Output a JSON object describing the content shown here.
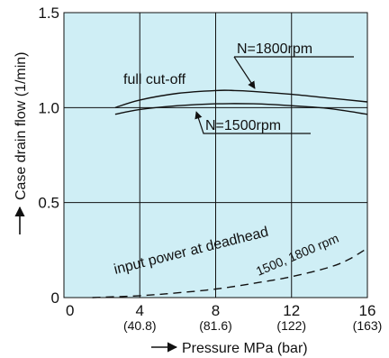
{
  "chart_data": {
    "type": "line",
    "title": "",
    "xlabel": "Pressure MPa (bar)",
    "ylabel": "Case drain flow (1/min)",
    "xlim": [
      0,
      16
    ],
    "ylim": [
      0,
      1.5
    ],
    "grid": true,
    "background_color": "#cfeef5",
    "x_ticks": [
      {
        "value": 0,
        "label": "0",
        "sublabel": ""
      },
      {
        "value": 4,
        "label": "4",
        "sublabel": "(40.8)"
      },
      {
        "value": 8,
        "label": "8",
        "sublabel": "(81.6)"
      },
      {
        "value": 12,
        "label": "12",
        "sublabel": "(122)"
      },
      {
        "value": 16,
        "label": "16",
        "sublabel": "(163)"
      }
    ],
    "y_ticks": [
      {
        "value": 0,
        "label": "0"
      },
      {
        "value": 0.5,
        "label": "0.5"
      },
      {
        "value": 1.0,
        "label": "1.0"
      },
      {
        "value": 1.5,
        "label": "1.5"
      }
    ],
    "series": [
      {
        "name": "N=1800rpm",
        "style": "solid",
        "x": [
          2.7,
          4,
          6,
          8,
          9,
          10,
          12,
          14,
          16
        ],
        "y": [
          1.0,
          1.04,
          1.075,
          1.09,
          1.09,
          1.085,
          1.07,
          1.05,
          1.03
        ]
      },
      {
        "name": "N=1500rpm",
        "style": "solid",
        "x": [
          2.7,
          4,
          6,
          8,
          10,
          12,
          14,
          16
        ],
        "y": [
          0.965,
          0.99,
          1.01,
          1.02,
          1.02,
          1.01,
          0.995,
          0.965
        ]
      },
      {
        "name": "input power at deadhead 1500, 1800 rpm",
        "style": "dashed",
        "x": [
          1.5,
          4,
          6,
          8,
          10,
          12,
          14,
          15,
          16
        ],
        "y": [
          0.0,
          0.01,
          0.025,
          0.045,
          0.075,
          0.11,
          0.16,
          0.2,
          0.26
        ]
      }
    ],
    "annotations": {
      "n1800": "N=1800rpm",
      "n1500": "N=1500rpm",
      "full_cutoff": "full cut-off",
      "deadhead_line1": "input power at deadhead",
      "deadhead_line2": "1500, 1800 rpm"
    }
  }
}
